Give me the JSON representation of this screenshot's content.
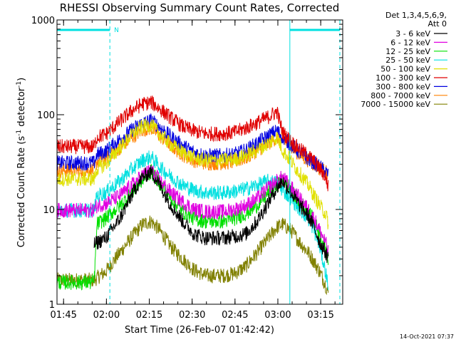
{
  "chart_data": {
    "type": "line",
    "title": "RHESSI Observing Summary Count Rates, Corrected",
    "xlabel": "Start Time (26-Feb-07 01:42:42)",
    "ylabel_parts": [
      "Corrected Count Rate (s",
      "-1",
      " detector",
      "-1",
      ")"
    ],
    "y_scale": "log",
    "ylim": [
      1,
      1000
    ],
    "xlim_minutes": [
      0,
      100
    ],
    "x_ticks": [
      {
        "t": 2.3,
        "label": "01:45"
      },
      {
        "t": 17.3,
        "label": "02:00"
      },
      {
        "t": 32.3,
        "label": "02:15"
      },
      {
        "t": 47.3,
        "label": "02:30"
      },
      {
        "t": 62.3,
        "label": "02:45"
      },
      {
        "t": 77.3,
        "label": "03:00"
      },
      {
        "t": 92.3,
        "label": "03:15"
      }
    ],
    "y_ticks": [
      {
        "v": 1,
        "label": "1"
      },
      {
        "v": 10,
        "label": "10"
      },
      {
        "v": 100,
        "label": "100"
      },
      {
        "v": 1000,
        "label": "1000"
      }
    ],
    "legend_header": [
      "Det 1,3,4,5,6,9,",
      "Att 0"
    ],
    "series": [
      {
        "name": "3 - 6 keV",
        "color": "#000000",
        "points": [
          [
            13,
            4.3
          ],
          [
            17,
            5
          ],
          [
            22,
            8
          ],
          [
            27,
            16
          ],
          [
            30,
            22
          ],
          [
            33,
            25
          ],
          [
            36,
            18
          ],
          [
            40,
            11
          ],
          [
            44,
            7.5
          ],
          [
            48,
            5.5
          ],
          [
            52,
            5
          ],
          [
            58,
            5
          ],
          [
            62,
            5.2
          ],
          [
            66,
            5.5
          ],
          [
            70,
            7.5
          ],
          [
            74,
            12
          ],
          [
            77,
            17
          ],
          [
            79,
            20
          ],
          [
            82,
            15
          ],
          [
            85,
            11
          ],
          [
            88,
            8.5
          ],
          [
            90,
            6.5
          ],
          [
            92,
            4.5
          ],
          [
            94,
            3.5
          ],
          [
            95,
            3
          ]
        ]
      },
      {
        "name": "6 - 12 keV",
        "color": "#e000e0",
        "points": [
          [
            0,
            9.8
          ],
          [
            13,
            9.8
          ],
          [
            14,
            11
          ],
          [
            17,
            11.5
          ],
          [
            22,
            14
          ],
          [
            27,
            19
          ],
          [
            30,
            23
          ],
          [
            33,
            26
          ],
          [
            36,
            20
          ],
          [
            40,
            15
          ],
          [
            44,
            12
          ],
          [
            48,
            10
          ],
          [
            52,
            9.5
          ],
          [
            58,
            9.5
          ],
          [
            62,
            10
          ],
          [
            66,
            11
          ],
          [
            70,
            13
          ],
          [
            74,
            17
          ],
          [
            77,
            20
          ],
          [
            79,
            22
          ],
          [
            82,
            17
          ],
          [
            85,
            13
          ],
          [
            88,
            10
          ],
          [
            90,
            8
          ],
          [
            92,
            6
          ],
          [
            94,
            4.5
          ],
          [
            95,
            3.5
          ]
        ]
      },
      {
        "name": "12 - 25 keV",
        "color": "#00e000",
        "points": [
          [
            0,
            1.7
          ],
          [
            13,
            1.7
          ],
          [
            14,
            7
          ],
          [
            17,
            8
          ],
          [
            22,
            11
          ],
          [
            27,
            16
          ],
          [
            30,
            21
          ],
          [
            33,
            25
          ],
          [
            36,
            19
          ],
          [
            40,
            13
          ],
          [
            44,
            9.5
          ],
          [
            48,
            8
          ],
          [
            52,
            7.5
          ],
          [
            58,
            7.5
          ],
          [
            62,
            8
          ],
          [
            66,
            9
          ],
          [
            70,
            11
          ],
          [
            74,
            15
          ],
          [
            77,
            18
          ],
          [
            79,
            21
          ],
          [
            82,
            16
          ],
          [
            85,
            12
          ],
          [
            88,
            9.5
          ],
          [
            90,
            7.5
          ],
          [
            92,
            5.5
          ],
          [
            94,
            4
          ],
          [
            95,
            3
          ]
        ]
      },
      {
        "name": "25 - 50 keV",
        "color": "#00e0e0",
        "points": [
          [
            0,
            9.8
          ],
          [
            13,
            9.8
          ],
          [
            14,
            14
          ],
          [
            17,
            15
          ],
          [
            22,
            20
          ],
          [
            27,
            28
          ],
          [
            30,
            33
          ],
          [
            33,
            36
          ],
          [
            36,
            28
          ],
          [
            40,
            22
          ],
          [
            44,
            18
          ],
          [
            48,
            16
          ],
          [
            52,
            15
          ],
          [
            58,
            15
          ],
          [
            62,
            15.5
          ],
          [
            66,
            16.5
          ],
          [
            70,
            18
          ],
          [
            74,
            20
          ],
          [
            77,
            19
          ],
          [
            79,
            16
          ],
          [
            82,
            13
          ],
          [
            85,
            10
          ],
          [
            88,
            8
          ],
          [
            90,
            6
          ],
          [
            92,
            4
          ],
          [
            94,
            2.2
          ],
          [
            95,
            1.5
          ]
        ]
      },
      {
        "name": "50 - 100 keV",
        "color": "#e0e000",
        "points": [
          [
            0,
            21
          ],
          [
            13,
            21
          ],
          [
            14,
            27
          ],
          [
            17,
            30
          ],
          [
            22,
            45
          ],
          [
            27,
            65
          ],
          [
            30,
            75
          ],
          [
            33,
            78
          ],
          [
            36,
            62
          ],
          [
            40,
            48
          ],
          [
            44,
            40
          ],
          [
            48,
            35
          ],
          [
            52,
            33
          ],
          [
            58,
            33
          ],
          [
            62,
            34
          ],
          [
            66,
            37
          ],
          [
            70,
            42
          ],
          [
            74,
            50
          ],
          [
            77,
            58
          ],
          [
            79,
            42
          ],
          [
            82,
            32
          ],
          [
            85,
            24
          ],
          [
            88,
            18
          ],
          [
            90,
            14
          ],
          [
            92,
            11
          ],
          [
            94,
            9
          ],
          [
            95,
            7
          ]
        ]
      },
      {
        "name": "100 - 300 keV",
        "color": "#e00000",
        "points": [
          [
            0,
            46
          ],
          [
            13,
            46
          ],
          [
            14,
            58
          ],
          [
            17,
            62
          ],
          [
            22,
            85
          ],
          [
            27,
            115
          ],
          [
            30,
            130
          ],
          [
            33,
            135
          ],
          [
            36,
            115
          ],
          [
            40,
            92
          ],
          [
            44,
            75
          ],
          [
            48,
            67
          ],
          [
            52,
            63
          ],
          [
            58,
            63
          ],
          [
            62,
            65
          ],
          [
            66,
            72
          ],
          [
            70,
            82
          ],
          [
            74,
            95
          ],
          [
            77,
            108
          ],
          [
            79,
            65
          ],
          [
            82,
            52
          ],
          [
            85,
            43
          ],
          [
            88,
            37
          ],
          [
            90,
            32
          ],
          [
            92,
            27
          ],
          [
            94,
            22
          ],
          [
            95,
            17
          ]
        ]
      },
      {
        "name": "300 - 800 keV",
        "color": "#0000e0",
        "points": [
          [
            0,
            31
          ],
          [
            13,
            31
          ],
          [
            14,
            38
          ],
          [
            17,
            41
          ],
          [
            22,
            55
          ],
          [
            27,
            72
          ],
          [
            30,
            82
          ],
          [
            33,
            87
          ],
          [
            36,
            74
          ],
          [
            40,
            58
          ],
          [
            44,
            47
          ],
          [
            48,
            40
          ],
          [
            52,
            37
          ],
          [
            58,
            37
          ],
          [
            62,
            38
          ],
          [
            66,
            42
          ],
          [
            70,
            50
          ],
          [
            74,
            60
          ],
          [
            77,
            68
          ],
          [
            79,
            58
          ],
          [
            82,
            48
          ],
          [
            85,
            40
          ],
          [
            88,
            34
          ],
          [
            90,
            31
          ],
          [
            92,
            28
          ],
          [
            94,
            25
          ],
          [
            95,
            23
          ]
        ]
      },
      {
        "name": "800 - 7000 keV",
        "color": "#ff8000",
        "points": [
          [
            0,
            26
          ],
          [
            13,
            26
          ],
          [
            14,
            32
          ],
          [
            17,
            34
          ],
          [
            22,
            45
          ],
          [
            27,
            60
          ],
          [
            30,
            70
          ],
          [
            33,
            72
          ],
          [
            36,
            60
          ],
          [
            40,
            47
          ],
          [
            44,
            38
          ],
          [
            48,
            33
          ],
          [
            52,
            31
          ],
          [
            58,
            31
          ],
          [
            62,
            32
          ],
          [
            66,
            35
          ],
          [
            70,
            42
          ],
          [
            74,
            50
          ],
          [
            77,
            58
          ],
          [
            79,
            55
          ],
          [
            82,
            45
          ],
          [
            85,
            38
          ],
          [
            88,
            33
          ],
          [
            90,
            30
          ],
          [
            92,
            27
          ],
          [
            94,
            25
          ],
          [
            95,
            23
          ]
        ]
      },
      {
        "name": "7000 - 15000 keV",
        "color": "#808000",
        "points": [
          [
            0,
            1.8
          ],
          [
            13,
            1.8
          ],
          [
            14,
            1.9
          ],
          [
            17,
            2.2
          ],
          [
            22,
            3.5
          ],
          [
            27,
            5.5
          ],
          [
            30,
            7
          ],
          [
            33,
            7.5
          ],
          [
            36,
            6
          ],
          [
            40,
            4
          ],
          [
            44,
            3
          ],
          [
            48,
            2.3
          ],
          [
            52,
            2
          ],
          [
            58,
            2
          ],
          [
            62,
            2.1
          ],
          [
            66,
            2.5
          ],
          [
            70,
            3.5
          ],
          [
            74,
            5
          ],
          [
            77,
            6.5
          ],
          [
            79,
            7
          ],
          [
            82,
            6
          ],
          [
            85,
            4.5
          ],
          [
            88,
            3.5
          ],
          [
            90,
            2.8
          ],
          [
            92,
            2.2
          ],
          [
            94,
            1.6
          ],
          [
            95,
            1.3
          ]
        ]
      }
    ],
    "night_intervals": [
      [
        0,
        18.5
      ],
      [
        81.5,
        99
      ]
    ],
    "dashed_markers": [
      18.5,
      99
    ],
    "solid_markers": [
      0,
      81.5
    ],
    "annotation": "N",
    "timestamp": "14-Oct-2021 07:37"
  }
}
